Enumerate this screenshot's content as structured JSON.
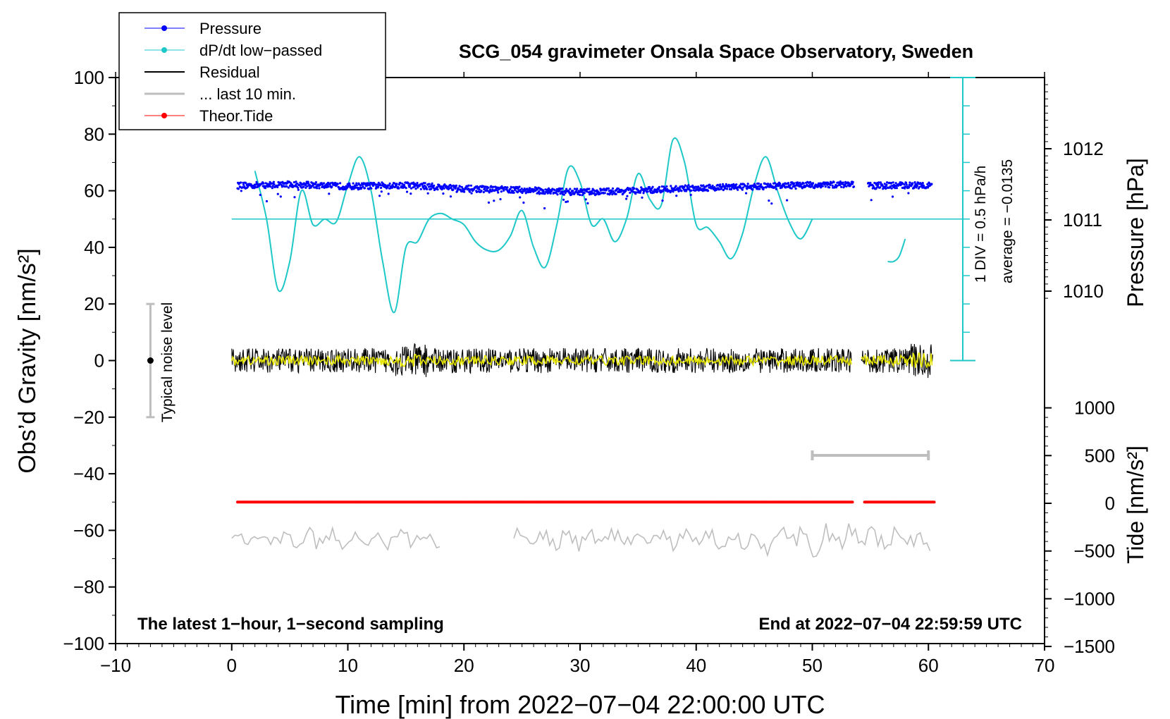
{
  "chart_data": {
    "type": "line",
    "title": "SCG_054 gravimeter Onsala Space Observatory, Sweden",
    "xlabel": "Time [min] from 2022−07−04 22:00:00 UTC",
    "ylabel_left": "Obs’d Gravity [nm/s²]",
    "ylabel_pressure": "Pressure [hPa]",
    "ylabel_tide": "Tide [nm/s²]",
    "xlim": [
      -10,
      70
    ],
    "ylim": [
      -100,
      100
    ],
    "x_ticks": [
      "−10",
      "0",
      "10",
      "20",
      "30",
      "40",
      "50",
      "60",
      "70"
    ],
    "y_ticks": [
      "100",
      "80",
      "60",
      "40",
      "20",
      "0",
      "−20",
      "−40",
      "−60",
      "−80",
      "−100"
    ],
    "pressure_ticks": [
      "1012",
      "1011",
      "1010"
    ],
    "tide_ticks": [
      "1000",
      "500",
      "0",
      "−500",
      "−1000",
      "−1500"
    ],
    "legend": [
      "Pressure",
      "dP/dt low−passed",
      "Residual",
      "... last 10 min.",
      "Theor.Tide"
    ],
    "annotation_left": "The latest 1−hour, 1−second sampling",
    "annotation_right": "End at 2022−07−04 22:59:59 UTC",
    "noise_label": "Typical noise level",
    "noise_range": [
      -20,
      20
    ],
    "div_label": "1 DIV = 0.5 hPa/h",
    "average_label": "average = −0.0135",
    "colors": {
      "pressure": "#0000ff",
      "dpdt": "#1ec8c8",
      "residual": "#000000",
      "last10": "#bebebe",
      "tide": "#ff0000",
      "residual_smooth": "#e6e600"
    },
    "series": [
      {
        "name": "Pressure",
        "unit": "hPa",
        "x": [
          0.5,
          5,
          10,
          15,
          20,
          25,
          30,
          35,
          40,
          45,
          50,
          53.5,
          55,
          60
        ],
        "values": [
          1011.48,
          1011.5,
          1011.47,
          1011.49,
          1011.44,
          1011.42,
          1011.39,
          1011.41,
          1011.45,
          1011.47,
          1011.49,
          1011.5,
          1011.48,
          1011.49
        ]
      },
      {
        "name": "dP/dt low−passed",
        "unit": "nm/s² scale",
        "x": [
          2,
          3,
          4,
          5,
          6,
          7,
          8,
          9,
          10,
          11,
          12,
          13,
          14,
          15,
          16,
          17,
          18,
          19,
          20,
          21,
          22,
          23,
          24,
          25,
          26,
          27,
          28,
          29,
          30,
          31,
          32,
          33,
          34,
          35,
          36,
          37,
          38,
          39,
          40,
          41,
          42,
          43,
          44,
          45,
          46,
          47,
          48,
          49,
          50
        ],
        "values": [
          67,
          50,
          25,
          35,
          60,
          48,
          50,
          49,
          62,
          72,
          60,
          35,
          17,
          40,
          42,
          50,
          52,
          50,
          48,
          42,
          39,
          39,
          44,
          53,
          40,
          33,
          48,
          68,
          63,
          48,
          50,
          42,
          50,
          66,
          57,
          55,
          78,
          70,
          48,
          47,
          42,
          36,
          45,
          62,
          72,
          60,
          49,
          43,
          50
        ]
      },
      {
        "name": "dP/dt low−passed (late)",
        "unit": "nm/s² scale",
        "x": [
          56.5,
          57,
          57.5,
          58
        ],
        "values": [
          35,
          35,
          37,
          43
        ]
      },
      {
        "name": "Residual",
        "unit": "nm/s²",
        "x": [
          0,
          60.5
        ],
        "values": [
          0,
          0
        ]
      },
      {
        "name": "... last 10 min.",
        "unit": "nm/s²",
        "x": [
          0,
          18,
          24,
          60
        ],
        "values": [
          -63,
          -62,
          -62,
          -63
        ]
      },
      {
        "name": "Theor.Tide",
        "unit": "nm/s²",
        "x": [
          0.5,
          53.5,
          54.5,
          60.5
        ],
        "values": [
          -50,
          -50,
          -50,
          -50
        ]
      }
    ],
    "last10_bar": {
      "x": [
        50,
        60
      ]
    }
  }
}
